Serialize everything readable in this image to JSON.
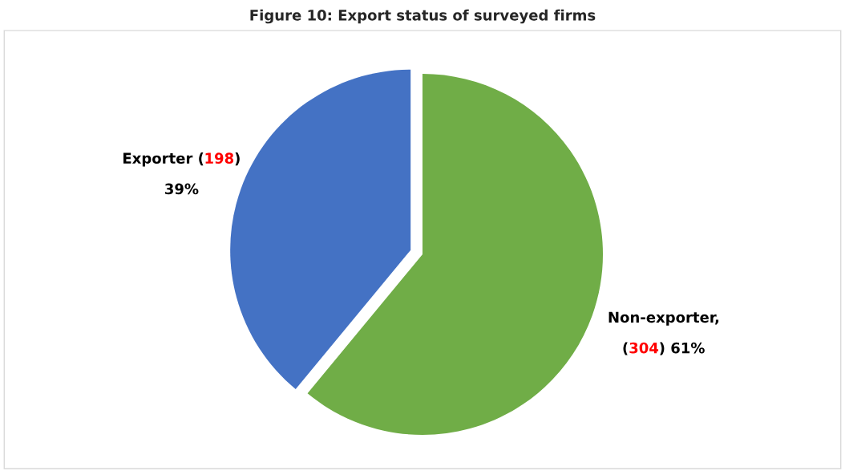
{
  "chart_data": {
    "type": "pie",
    "title": "Figure 10: Export status of surveyed firms",
    "categories": [
      "Exporter",
      "Non-exporter"
    ],
    "values": [
      39,
      61
    ],
    "colors": [
      "#4472c4",
      "#70ad47"
    ],
    "value_labels": [
      "(198) 39%",
      ", (304) 61%"
    ]
  }
}
